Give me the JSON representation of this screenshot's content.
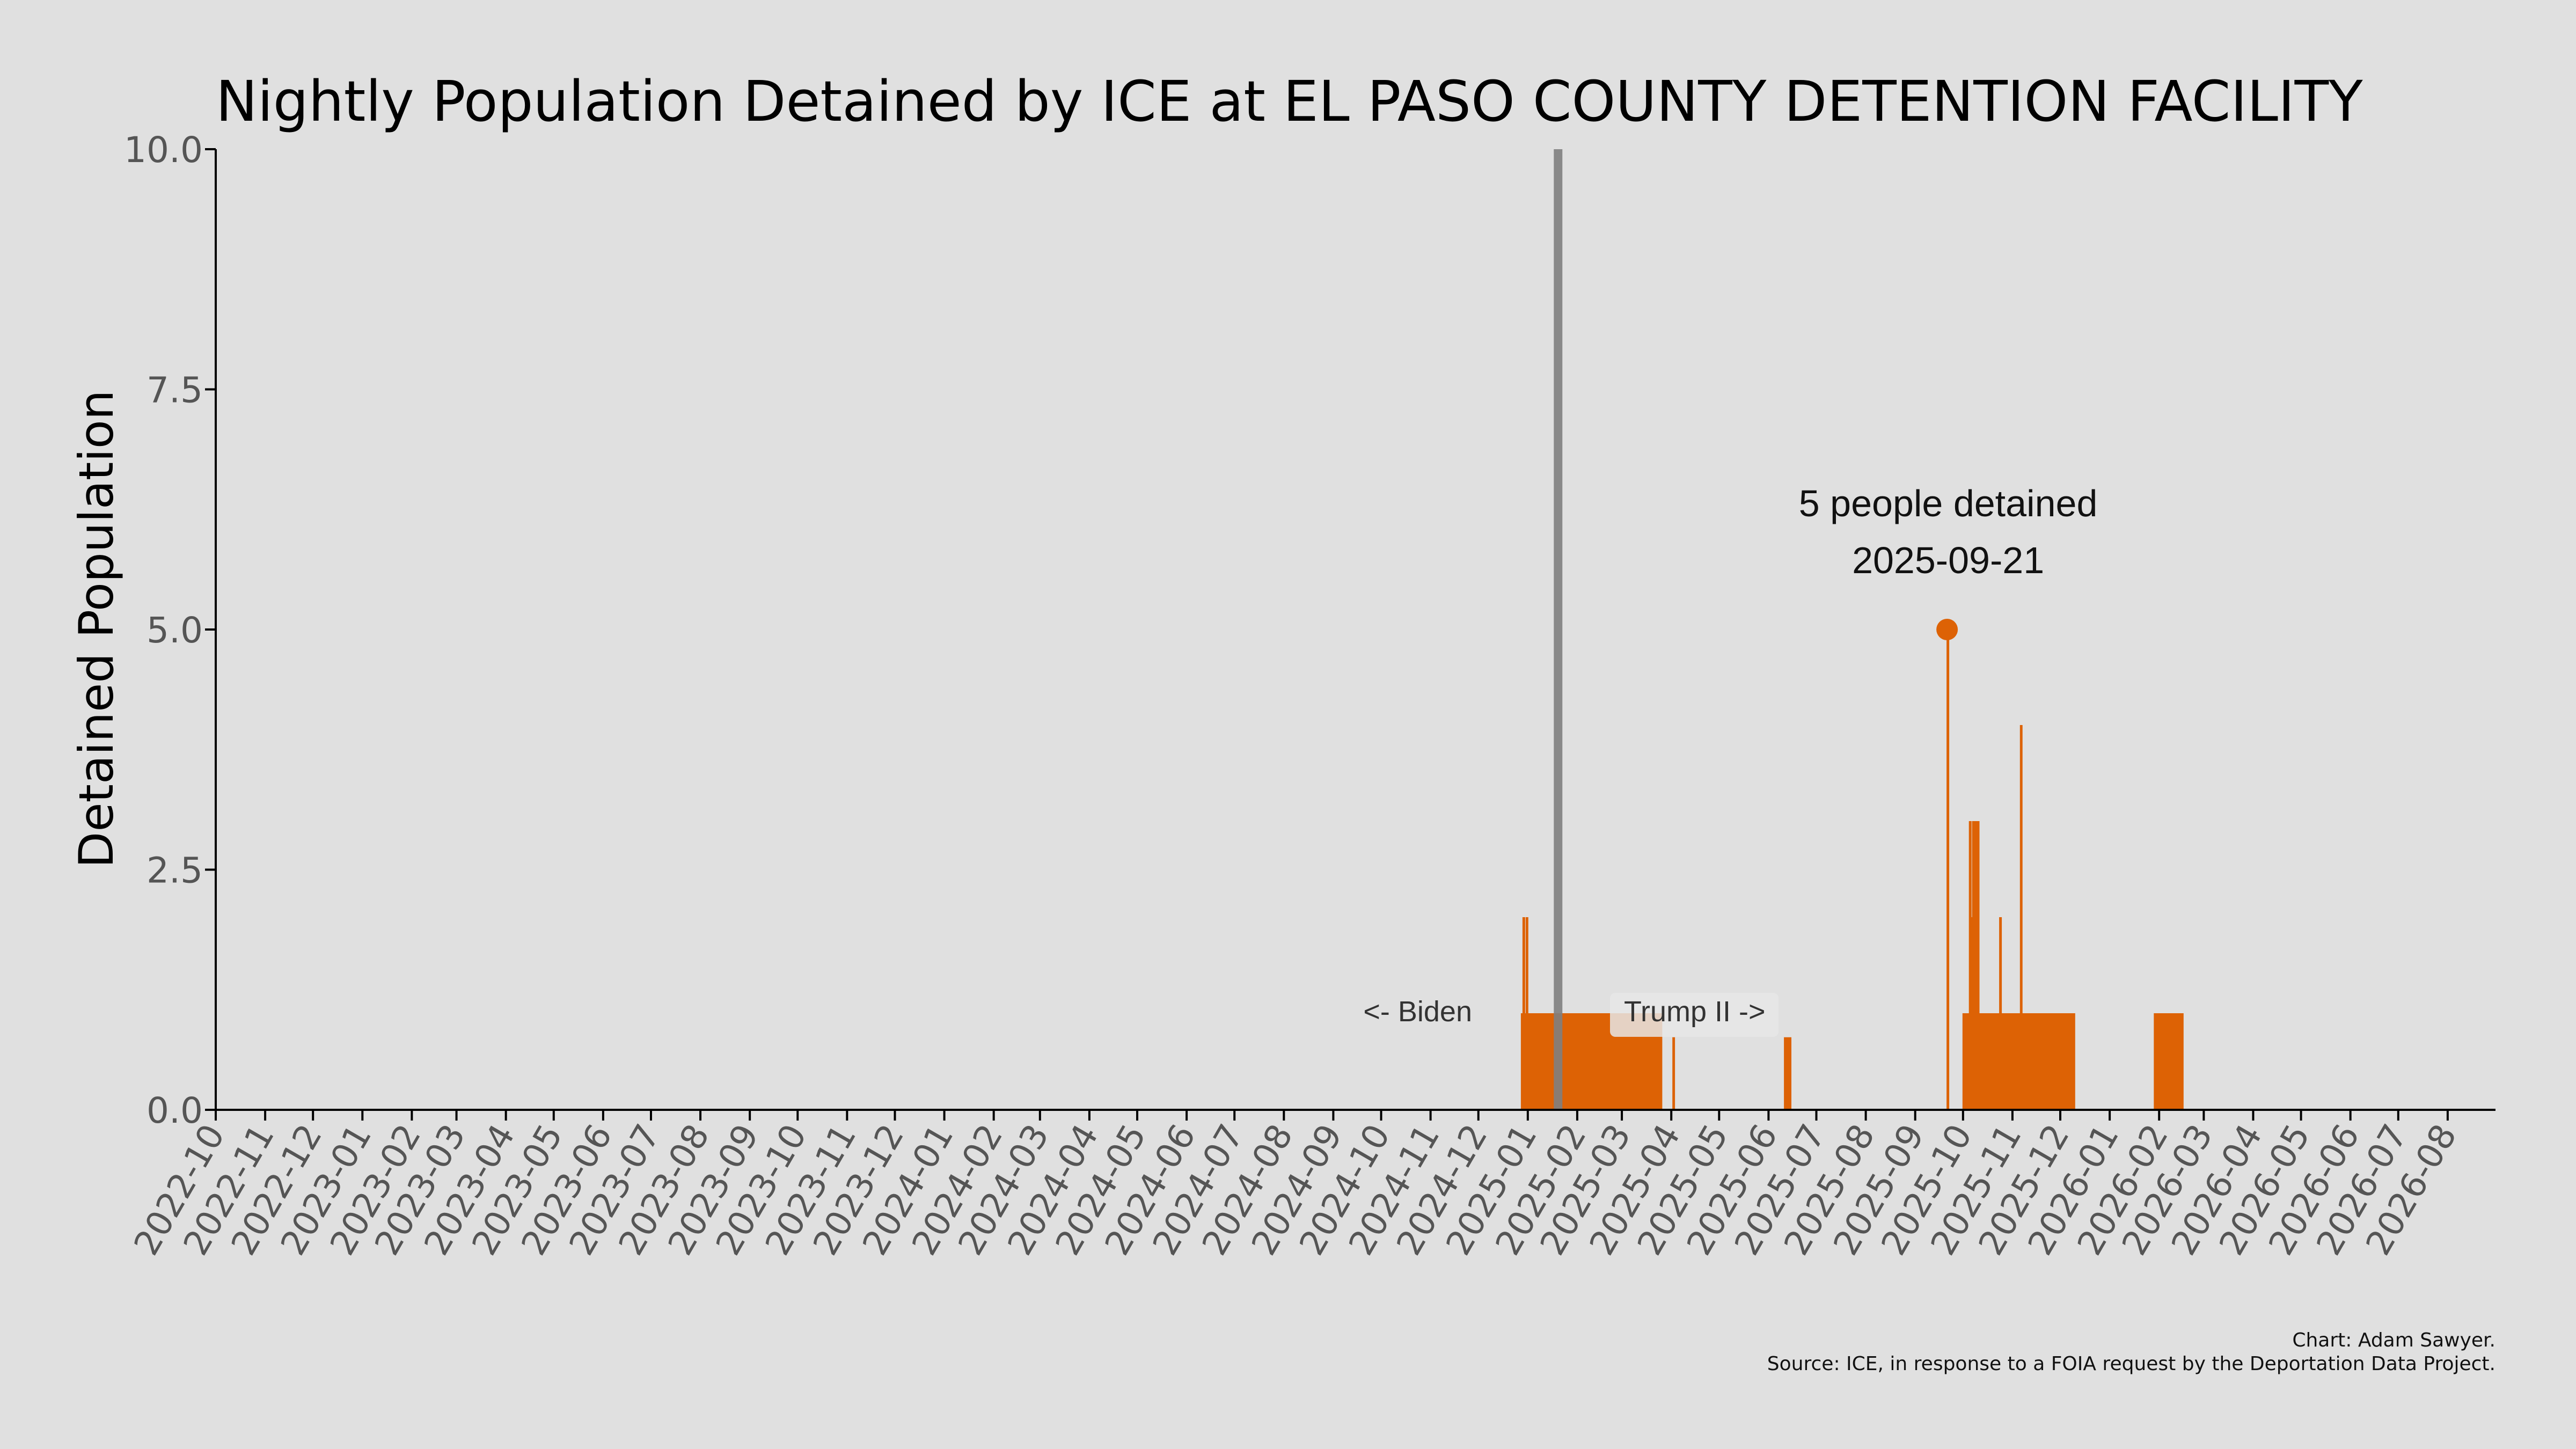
{
  "chart_data": {
    "type": "area",
    "title": "Nightly Population Detained by ICE at EL PASO COUNTY DETENTION FACILITY",
    "xlabel": "",
    "ylabel": "Detained Population",
    "ylim": [
      0,
      10
    ],
    "xlim": [
      "2022-10-01",
      "2026-08-31"
    ],
    "y_ticks": [
      0,
      2.5,
      5,
      7.5,
      10
    ],
    "y_tick_labels": [
      "0.0",
      "2.5",
      "5.0",
      "7.5",
      "10.0"
    ],
    "x_tick_labels": [
      "2022-10",
      "2022-11",
      "2022-12",
      "2023-01",
      "2023-02",
      "2023-03",
      "2023-04",
      "2023-05",
      "2023-06",
      "2023-07",
      "2023-08",
      "2023-09",
      "2023-10",
      "2023-11",
      "2023-12",
      "2024-01",
      "2024-02",
      "2024-03",
      "2024-04",
      "2024-05",
      "2024-06",
      "2024-07",
      "2024-08",
      "2024-09",
      "2024-10",
      "2024-11",
      "2024-12",
      "2025-01",
      "2025-02",
      "2025-03",
      "2025-04",
      "2025-05",
      "2025-06",
      "2025-07",
      "2025-08",
      "2025-09",
      "2025-10",
      "2025-11",
      "2025-12",
      "2026-01",
      "2026-02",
      "2026-03",
      "2026-04",
      "2026-05",
      "2026-06",
      "2026-07",
      "2026-08"
    ],
    "grid": false,
    "series": [
      {
        "color": "#dd6205",
        "points": [
          [
            "2024-12-28",
            1
          ],
          [
            "2024-12-29",
            2
          ],
          [
            "2024-12-30",
            1
          ],
          [
            "2024-12-31",
            2
          ],
          [
            "2025-01-01",
            1
          ],
          [
            "2025-03-01",
            1
          ],
          [
            "2025-03-25",
            1
          ],
          [
            "2025-03-26",
            0
          ],
          [
            "2025-04-01",
            0
          ],
          [
            "2025-04-02",
            0.75
          ],
          [
            "2025-04-03",
            0
          ],
          [
            "2025-06-10",
            0
          ],
          [
            "2025-06-11",
            0.75
          ],
          [
            "2025-06-14",
            0.75
          ],
          [
            "2025-06-15",
            0
          ],
          [
            "2025-09-20",
            0
          ],
          [
            "2025-09-21",
            5
          ],
          [
            "2025-09-22",
            0
          ],
          [
            "2025-09-30",
            0
          ],
          [
            "2025-10-01",
            1
          ],
          [
            "2025-10-04",
            1
          ],
          [
            "2025-10-05",
            3
          ],
          [
            "2025-10-06",
            2
          ],
          [
            "2025-10-07",
            3
          ],
          [
            "2025-10-10",
            3
          ],
          [
            "2025-10-11",
            1
          ],
          [
            "2025-10-23",
            1
          ],
          [
            "2025-10-24",
            2
          ],
          [
            "2025-10-25",
            1
          ],
          [
            "2025-11-05",
            1
          ],
          [
            "2025-11-06",
            4
          ],
          [
            "2025-11-07",
            1
          ],
          [
            "2025-12-09",
            1
          ],
          [
            "2025-12-10",
            0
          ],
          [
            "2026-01-28",
            0
          ],
          [
            "2026-01-29",
            1
          ],
          [
            "2026-02-15",
            1
          ],
          [
            "2026-02-16",
            0
          ]
        ]
      }
    ],
    "vline": {
      "x": "2025-01-20",
      "color": "#808080"
    },
    "annotations": {
      "biden_label": "<- Biden",
      "trump_label": "Trump II ->",
      "peak_value_label": "5 people detained",
      "peak_date_label": "2025-09-21",
      "peak_point": {
        "x": "2025-09-21",
        "y": 5
      }
    },
    "credit_line1": "Chart: Adam Sawyer.",
    "credit_line2": "Source: ICE, in response to a FOIA request by the Deportation Data Project."
  }
}
